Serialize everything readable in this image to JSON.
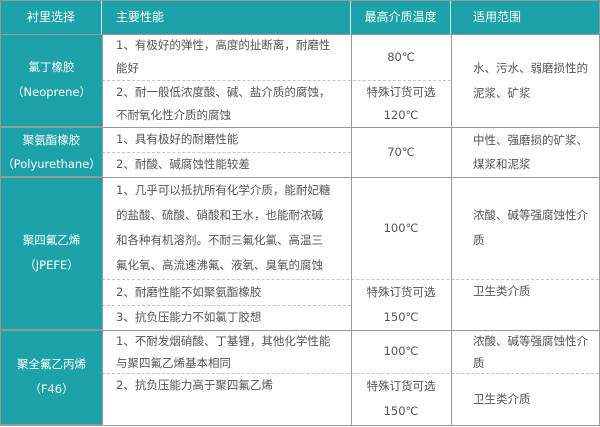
{
  "accent_color": "#1ba3a9",
  "headers": [
    "衬里选择",
    "主要性能",
    "最高介质温度",
    "适用范围"
  ],
  "rows": [
    {
      "material": [
        "氯丁橡胶",
        "（Neoprene）"
      ],
      "properties": [
        [
          "1、有极好的弹性，高度的扯断离，耐磨性",
          "能好"
        ],
        [
          "2、耐一般低浓度酸、碱、盐介质的腐蚀，",
          "不耐氧化性介质的腐蚀"
        ]
      ],
      "temps": [
        [
          "80℃"
        ],
        [
          "特殊订货可选",
          "120℃"
        ]
      ],
      "ranges": [
        [
          "水、污水、弱磨损性的",
          "泥浆、矿浆"
        ]
      ]
    },
    {
      "material": [
        "聚氨酯橡胶",
        "（Polyurethane）"
      ],
      "properties": [
        [
          "1、具有极好的耐磨性能"
        ],
        [
          "2、耐酸、碱腐蚀性能较差"
        ]
      ],
      "temps": [
        [
          "70℃"
        ]
      ],
      "ranges": [
        [
          "中性、强磨损的矿浆、",
          "煤浆和泥浆"
        ]
      ]
    },
    {
      "material": [
        "聚四氟乙烯",
        "（JPEFE）"
      ],
      "properties": [
        [
          "1、几乎可以抵抗所有化学介质，能耐妃糖",
          "的盐酸、硫酸、硝酸和王水，也能耐浓碱",
          "和各种有机溶剂。不耐三氟化氯、高温三",
          "氟化氧、高流速沸氟、液氧、臭氧的腐蚀"
        ],
        [
          "2、耐磨性能不如聚氨酯橡胶"
        ],
        [
          "3、抗负压能力不如氯丁胶想"
        ]
      ],
      "temps": [
        [
          "100℃"
        ],
        [
          "特殊订货可选",
          "150℃"
        ]
      ],
      "ranges": [
        [
          "浓酸、碱等强腐蚀性介",
          "质"
        ],
        [
          "卫生类介质"
        ]
      ]
    },
    {
      "material": [
        "聚全氟乙丙烯",
        "（F46）"
      ],
      "properties": [
        [
          "1、不耐发烟硝酸、丁基锂，其他化学性能",
          "与聚四氟乙烯基本相同"
        ],
        [
          "2、抗负压能力高于聚四氟乙烯"
        ]
      ],
      "temps": [
        [
          "100℃"
        ],
        [
          "特殊订货可选",
          "150℃"
        ]
      ],
      "ranges": [
        [
          "浓酸、碱等强腐蚀性介",
          "质"
        ],
        [
          "卫生类介质"
        ]
      ]
    }
  ]
}
